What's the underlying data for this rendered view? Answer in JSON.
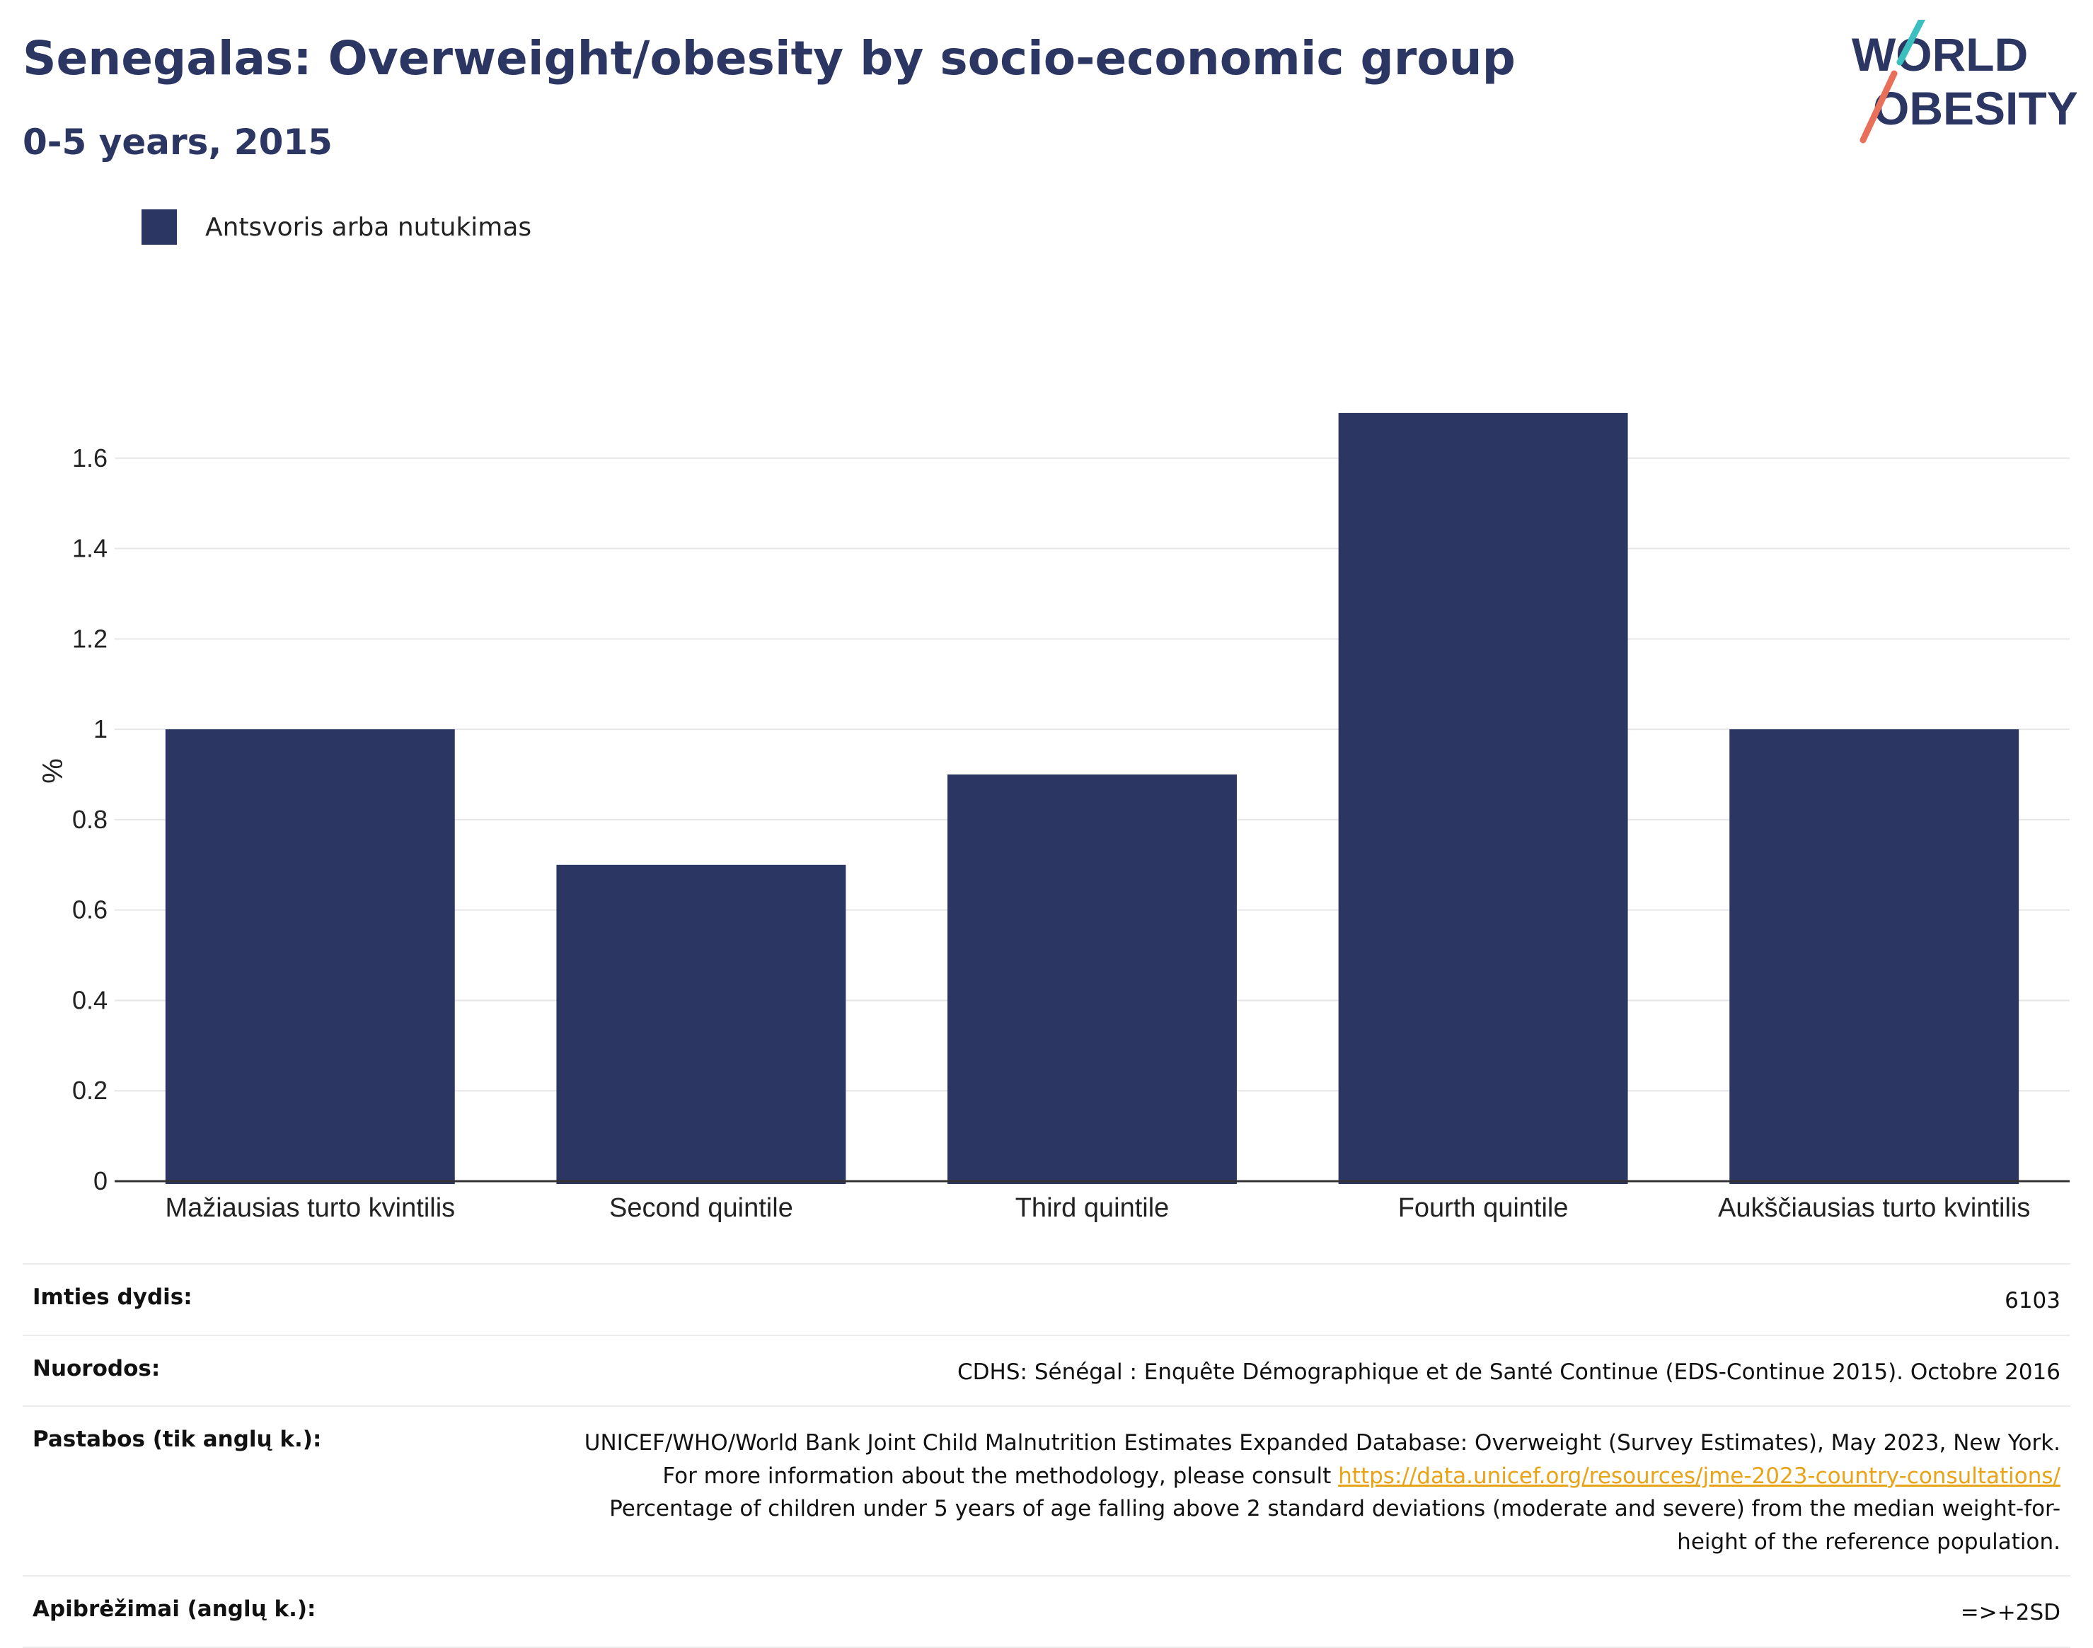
{
  "header": {
    "title": "Senegalas: Overweight/obesity by socio-economic group",
    "subtitle": "0-5 years, 2015"
  },
  "logo": {
    "line1": "WORLD",
    "line2": "OBESITY",
    "colors": {
      "text": "#2b3663",
      "slash_top": "#3bbfbf",
      "slash_bottom": "#e8705a"
    }
  },
  "legend": {
    "label": "Antsvoris arba nutukimas",
    "color": "#2b3663"
  },
  "chart_data": {
    "type": "bar",
    "categories": [
      "Mažiausias turto kvintilis",
      "Second quintile",
      "Third quintile",
      "Fourth quintile",
      "Aukščiausias turto kvintilis"
    ],
    "series": [
      {
        "name": "Antsvoris arba nutukimas",
        "values": [
          1.0,
          0.7,
          0.9,
          1.7,
          1.0
        ],
        "color": "#2b3663"
      }
    ],
    "ylabel": "%",
    "ylim": [
      0,
      1.8
    ],
    "yticks": [
      0,
      0.2,
      0.4,
      0.6,
      0.8,
      1,
      1.2,
      1.4,
      1.6
    ],
    "ytick_labels": [
      "0",
      "0.2",
      "0.4",
      "0.6",
      "0.8",
      "1",
      "1.2",
      "1.4",
      "1.6"
    ],
    "grid": true,
    "legend_position": "top-left"
  },
  "meta": {
    "sample_size": {
      "label": "Imties dydis:",
      "value": "6103"
    },
    "references": {
      "label": "Nuorodos:",
      "value": "CDHS: Sénégal : Enquête Démographique et de Santé Continue (EDS-Continue 2015). Octobre 2016"
    },
    "notes": {
      "label": "Pastabos (tik anglų k.):",
      "text_before": "UNICEF/WHO/World Bank Joint Child Malnutrition Estimates Expanded Database: Overweight (Survey Estimates), May 2023, New York. For more information about the methodology, please consult",
      "link": "https://data.unicef.org/resources/jme-2023-country-consultations/",
      "text_after": "Percentage of children under 5 years of age falling above 2 standard deviations (moderate and severe) from the median weight-for-height of the reference population."
    },
    "definitions": {
      "label": "Apibrėžimai (anglų k.):",
      "value": "=>+2SD"
    }
  }
}
